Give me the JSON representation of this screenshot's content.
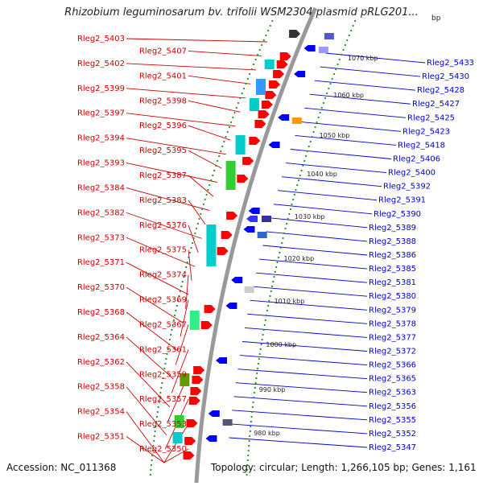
{
  "title": "Rhizobium leguminosarum bv. trifolii WSM2304 plasmid pRLG201...",
  "unit": "bp",
  "footer": {
    "accession": "Accession: NC_011368",
    "summary": "Topology: circular; Length: 1,266,105 bp; Genes: 1,161"
  },
  "colors": {
    "backbone": "#999999",
    "ticks": "#2a8a2a",
    "forward_label": "#cc0000",
    "reverse_label": "#0000cc"
  },
  "scale_labels": [
    "1070 kbp",
    "1060 kbp",
    "1050 kbp",
    "1040 kbp",
    "1030 kbp",
    "1020 kbp",
    "1010 kbp",
    "1000 kbp",
    "990 kbp",
    "980 kbp"
  ],
  "left_labels": [
    "Rleg2_5403",
    "Rleg2_5407",
    "Rleg2_5402",
    "Rleg2_5401",
    "Rleg2_5399",
    "Rleg2_5398",
    "Rleg2_5397",
    "Rleg2_5396",
    "Rleg2_5394",
    "Rleg2_5395",
    "Rleg2_5393",
    "Rleg2_5387",
    "Rleg2_5384",
    "Rleg2_5383",
    "Rleg2_5382",
    "Rleg2_5376",
    "Rleg2_5373",
    "Rleg2_5375",
    "Rleg2_5371",
    "Rleg2_5374",
    "Rleg2_5370",
    "Rleg2_5369",
    "Rleg2_5368",
    "Rleg2_5367",
    "Rleg2_5364",
    "Rleg2_5361",
    "Rleg2_5362",
    "Rleg2_5359",
    "Rleg2_5358",
    "Rleg2_5357",
    "Rleg2_5354",
    "Rleg2_5353",
    "Rleg2_5351",
    "Rleg2_5350"
  ],
  "right_labels": [
    "Rleg2_5433",
    "Rleg2_5430",
    "Rleg2_5428",
    "Rleg2_5427",
    "Rleg2_5425",
    "Rleg2_5423",
    "Rleg2_5418",
    "Rleg2_5406",
    "Rleg2_5400",
    "Rleg2_5392",
    "Rleg2_5391",
    "Rleg2_5390",
    "Rleg2_5389",
    "Rleg2_5388",
    "Rleg2_5386",
    "Rleg2_5385",
    "Rleg2_5381",
    "Rleg2_5380",
    "Rleg2_5379",
    "Rleg2_5378",
    "Rleg2_5377",
    "Rleg2_5372",
    "Rleg2_5366",
    "Rleg2_5365",
    "Rleg2_5363",
    "Rleg2_5356",
    "Rleg2_5355",
    "Rleg2_5352",
    "Rleg2_5347"
  ]
}
